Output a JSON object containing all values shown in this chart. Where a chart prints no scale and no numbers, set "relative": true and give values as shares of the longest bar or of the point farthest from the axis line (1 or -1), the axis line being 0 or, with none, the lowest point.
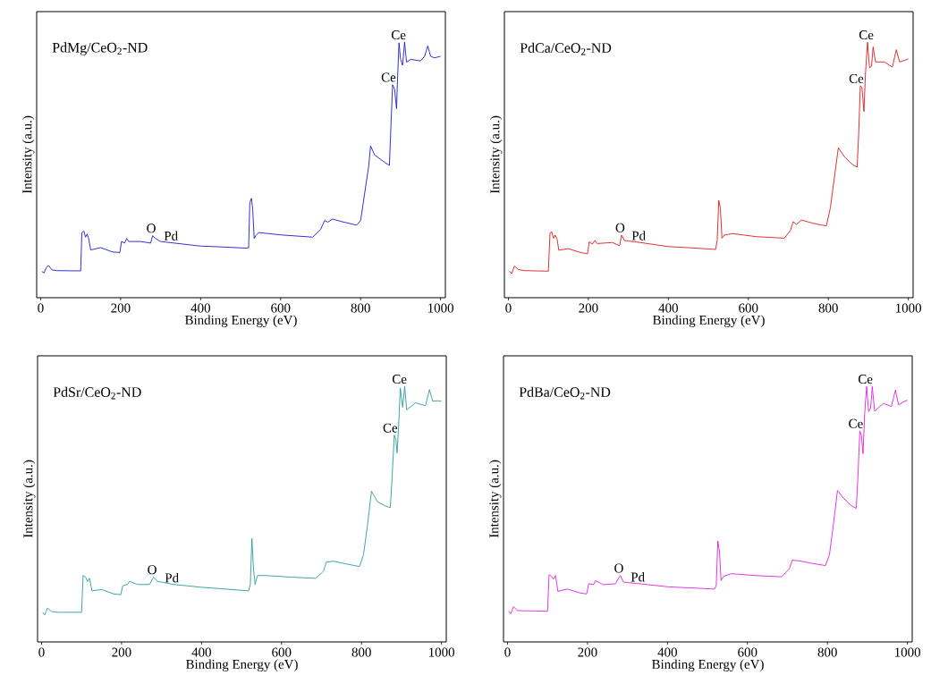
{
  "chart_data": [
    {
      "type": "line",
      "title": "PdMg/CeO$_{2}$-ND",
      "xlabel": "Binding Energy (eV)",
      "ylabel": "Intensity (a.u.)",
      "relative": true,
      "tick_labels": "x",
      "xlim": [
        -10,
        1012
      ],
      "xticks": [
        0,
        200,
        400,
        600,
        800,
        1000
      ],
      "color": "#1a1ad0",
      "x": [
        3,
        8,
        15,
        20,
        28,
        40,
        100,
        103,
        108,
        112,
        116,
        120,
        125,
        150,
        180,
        198,
        202,
        210,
        215,
        220,
        250,
        275,
        280,
        287,
        300,
        350,
        400,
        450,
        515,
        520,
        523,
        527,
        530,
        534,
        538,
        545,
        600,
        680,
        700,
        710,
        718,
        730,
        750,
        790,
        800,
        810,
        820,
        825,
        835,
        860,
        872,
        876,
        880,
        885,
        888,
        890,
        892,
        896,
        900,
        905,
        910,
        915,
        925,
        950,
        960,
        968,
        975,
        985,
        1000
      ],
      "values": [
        0.103,
        0.097,
        0.12,
        0.126,
        0.109,
        0.106,
        0.105,
        0.255,
        0.261,
        0.237,
        0.249,
        0.232,
        0.187,
        0.196,
        0.179,
        0.177,
        0.22,
        0.214,
        0.232,
        0.22,
        0.22,
        0.214,
        0.243,
        0.232,
        0.22,
        0.211,
        0.202,
        0.199,
        0.194,
        0.196,
        0.372,
        0.389,
        0.349,
        0.232,
        0.243,
        0.255,
        0.246,
        0.237,
        0.267,
        0.302,
        0.296,
        0.308,
        0.299,
        0.284,
        0.302,
        0.407,
        0.512,
        0.594,
        0.559,
        0.53,
        0.518,
        0.676,
        0.834,
        0.816,
        0.77,
        0.74,
        0.84,
        0.998,
        0.933,
        0.91,
        1,
        0.922,
        0.933,
        0.927,
        0.945,
        0.986,
        0.945,
        0.939,
        0.945
      ],
      "annotations": [
        {
          "text": "O",
          "x": 280,
          "y": 0.243
        },
        {
          "text": "Pd",
          "x": 335,
          "y": 0.213
        },
        {
          "text": "Ce",
          "x": 880,
          "y": 0.834
        },
        {
          "text": "Ce",
          "x": 905,
          "y": 1
        }
      ]
    },
    {
      "type": "line",
      "title": "PdCa/CeO$_{2}$-ND",
      "xlabel": "Binding Energy (eV)",
      "ylabel": "Intensity (a.u.)",
      "relative": true,
      "tick_labels": "x",
      "xlim": [
        -10,
        1012
      ],
      "xticks": [
        0,
        200,
        400,
        600,
        800,
        1000
      ],
      "color": "#dd1a1a",
      "x": [
        3,
        8,
        15,
        25,
        40,
        100,
        104,
        108,
        113,
        117,
        122,
        126,
        150,
        180,
        198,
        202,
        210,
        216,
        222,
        260,
        278,
        283,
        290,
        330,
        400,
        450,
        518,
        522,
        526,
        530,
        534,
        540,
        560,
        620,
        690,
        705,
        712,
        720,
        733,
        760,
        795,
        805,
        815,
        825,
        840,
        860,
        872,
        876,
        880,
        884,
        889,
        893,
        898,
        903,
        908,
        912,
        918,
        940,
        960,
        970,
        978,
        990,
        1000
      ],
      "values": [
        0.104,
        0.094,
        0.124,
        0.11,
        0.106,
        0.104,
        0.251,
        0.259,
        0.233,
        0.245,
        0.228,
        0.186,
        0.192,
        0.177,
        0.172,
        0.219,
        0.21,
        0.224,
        0.212,
        0.216,
        0.204,
        0.245,
        0.224,
        0.216,
        0.2,
        0.196,
        0.189,
        0.222,
        0.381,
        0.351,
        0.233,
        0.245,
        0.251,
        0.239,
        0.233,
        0.263,
        0.298,
        0.287,
        0.304,
        0.292,
        0.281,
        0.351,
        0.469,
        0.587,
        0.552,
        0.522,
        0.511,
        0.646,
        0.829,
        0.823,
        0.729,
        0.882,
        1,
        0.9,
        0.906,
        0.982,
        0.923,
        0.923,
        0.903,
        0.971,
        0.923,
        0.929,
        0.935
      ],
      "annotations": [
        {
          "text": "O",
          "x": 283,
          "y": 0.245
        },
        {
          "text": "Pd",
          "x": 335,
          "y": 0.214
        },
        {
          "text": "Ce",
          "x": 880,
          "y": 0.829
        },
        {
          "text": "Ce",
          "x": 905,
          "y": 1
        }
      ]
    },
    {
      "type": "line",
      "title": "PdSr/CeO$_{2}$-ND",
      "xlabel": "Binding Energy (eV)",
      "ylabel": "Intensity (a.u.)",
      "relative": true,
      "tick_labels": "x",
      "xlim": [
        -10,
        1012
      ],
      "xticks": [
        0,
        200,
        400,
        600,
        800,
        1000
      ],
      "color": "#2a9a9a",
      "x": [
        3,
        8,
        15,
        25,
        40,
        100,
        104,
        110,
        115,
        120,
        126,
        150,
        180,
        198,
        203,
        215,
        220,
        240,
        270,
        280,
        290,
        330,
        400,
        450,
        518,
        522,
        526,
        530,
        534,
        540,
        560,
        620,
        685,
        705,
        712,
        730,
        760,
        795,
        805,
        815,
        825,
        840,
        860,
        872,
        876,
        882,
        886,
        889,
        893,
        897,
        903,
        908,
        913,
        935,
        960,
        970,
        978,
        990,
        1000
      ],
      "values": [
        0.116,
        0.106,
        0.133,
        0.119,
        0.116,
        0.116,
        0.26,
        0.254,
        0.237,
        0.249,
        0.2,
        0.205,
        0.188,
        0.185,
        0.22,
        0.225,
        0.237,
        0.225,
        0.225,
        0.254,
        0.237,
        0.225,
        0.214,
        0.208,
        0.2,
        0.225,
        0.405,
        0.283,
        0.225,
        0.26,
        0.26,
        0.254,
        0.249,
        0.277,
        0.312,
        0.316,
        0.306,
        0.295,
        0.341,
        0.457,
        0.59,
        0.549,
        0.532,
        0.526,
        0.63,
        0.809,
        0.792,
        0.74,
        0.85,
        0.994,
        0.919,
        1,
        0.908,
        0.936,
        0.925,
        0.988,
        0.942,
        0.944,
        0.942
      ],
      "annotations": [
        {
          "text": "O",
          "x": 280,
          "y": 0.254
        },
        {
          "text": "Pd",
          "x": 335,
          "y": 0.222
        },
        {
          "text": "Ce",
          "x": 882,
          "y": 0.809
        },
        {
          "text": "Ce",
          "x": 905,
          "y": 1
        }
      ]
    },
    {
      "type": "line",
      "title": "PdBa/CeO$_{2}$-ND",
      "xlabel": "Binding Energy (eV)",
      "ylabel": "Intensity (a.u.)",
      "relative": true,
      "tick_labels": "x",
      "xlim": [
        -10,
        1012
      ],
      "xticks": [
        0,
        200,
        400,
        600,
        800,
        1000
      ],
      "color": "#e020e0",
      "x": [
        3,
        8,
        15,
        25,
        40,
        100,
        104,
        110,
        115,
        120,
        126,
        150,
        180,
        198,
        203,
        215,
        220,
        240,
        270,
        282,
        290,
        330,
        400,
        450,
        518,
        522,
        526,
        530,
        534,
        540,
        560,
        620,
        685,
        705,
        712,
        730,
        760,
        795,
        805,
        815,
        825,
        840,
        860,
        872,
        876,
        881,
        885,
        889,
        893,
        898,
        903,
        908,
        912,
        918,
        940,
        960,
        970,
        978,
        990,
        1000
      ],
      "values": [
        0.12,
        0.11,
        0.138,
        0.123,
        0.122,
        0.12,
        0.263,
        0.257,
        0.246,
        0.26,
        0.198,
        0.207,
        0.192,
        0.188,
        0.228,
        0.224,
        0.24,
        0.224,
        0.228,
        0.26,
        0.234,
        0.228,
        0.216,
        0.212,
        0.207,
        0.222,
        0.395,
        0.353,
        0.24,
        0.257,
        0.267,
        0.26,
        0.255,
        0.287,
        0.32,
        0.317,
        0.308,
        0.299,
        0.341,
        0.461,
        0.593,
        0.563,
        0.533,
        0.523,
        0.641,
        0.826,
        0.808,
        0.737,
        0.892,
        1,
        0.902,
        0.916,
        1,
        0.904,
        0.934,
        0.922,
        0.986,
        0.928,
        0.94,
        0.946
      ],
      "annotations": [
        {
          "text": "O",
          "x": 282,
          "y": 0.26
        },
        {
          "text": "Pd",
          "x": 335,
          "y": 0.225
        },
        {
          "text": "Ce",
          "x": 881,
          "y": 0.826
        },
        {
          "text": "Ce",
          "x": 905,
          "y": 1
        }
      ]
    }
  ]
}
